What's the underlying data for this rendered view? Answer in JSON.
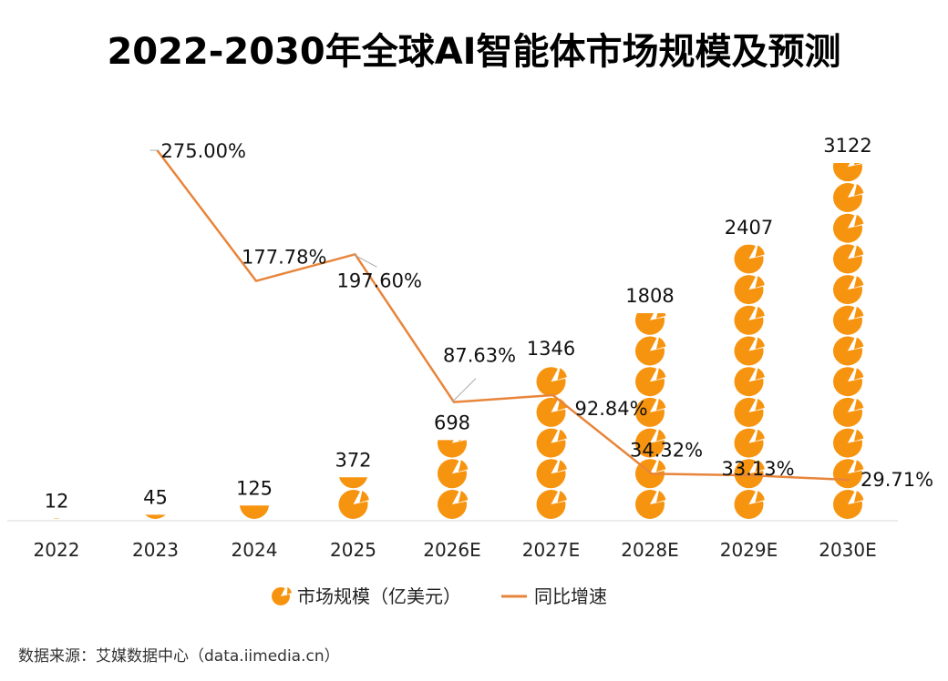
{
  "chart_data": {
    "type": "bar+line",
    "title": "2022-2030年全球AI智能体市场规模及预测",
    "categories": [
      "2022",
      "2023",
      "2024",
      "2025",
      "2026E",
      "2027E",
      "2028E",
      "2029E",
      "2030E"
    ],
    "series": [
      {
        "name": "市场规模（亿美元）",
        "type": "pictogram-bar",
        "values": [
          12,
          45,
          125,
          372,
          698,
          1346,
          1808,
          2407,
          3122
        ],
        "labels": [
          "12",
          "45",
          "125",
          "372",
          "698",
          "1346",
          "1808",
          "2407",
          "3122"
        ],
        "color": "#F7940F"
      },
      {
        "name": "同比增速",
        "type": "line",
        "values": [
          null,
          275.0,
          177.78,
          197.6,
          87.63,
          92.84,
          34.32,
          33.13,
          29.71
        ],
        "labels": [
          "",
          "275.00%",
          "177.78%",
          "197.60%",
          "87.63%",
          "92.84%",
          "34.32%",
          "33.13%",
          "29.71%"
        ],
        "color": "#E8853A"
      }
    ],
    "legend_placement": "bottom",
    "grid": false
  },
  "source": "数据来源：艾媒数据中心（data.iimedia.cn）",
  "colors": {
    "bar": "#F7940F",
    "line": "#E8853A",
    "axis": "#D9D9D9",
    "text": "#000000"
  }
}
